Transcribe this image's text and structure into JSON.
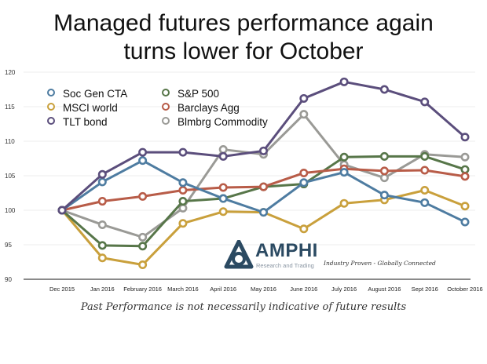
{
  "title_line1": "Managed futures performance again",
  "title_line2": "turns lower for October",
  "footer_note": "Past Performance is not necessarily indicative of future results",
  "logo": {
    "name": "AMPHI",
    "subtitle": "Research and Trading",
    "tagline": "Industry Proven - Globally Connected",
    "color": "#2b4a62"
  },
  "chart_data": {
    "type": "line",
    "title": "Managed futures performance again turns lower for October",
    "xlabel": "",
    "ylabel": "",
    "categories": [
      "Dec 2015",
      "Jan 2016",
      "February 2016",
      "March 2016",
      "April 2016",
      "May 2016",
      "June 2016",
      "July 2016",
      "August 2016",
      "Sept 2016",
      "October 2016"
    ],
    "ylim": [
      90,
      120
    ],
    "yticks": [
      90,
      95,
      100,
      105,
      110,
      115,
      120
    ],
    "grid": true,
    "legend_position": "top-left",
    "series": [
      {
        "name": "Soc Gen CTA",
        "color": "#4e7ca1",
        "values": [
          100,
          104.1,
          107.2,
          104.0,
          101.7,
          99.7,
          104.0,
          105.5,
          102.2,
          101.1,
          98.3
        ]
      },
      {
        "name": "MSCI world",
        "color": "#c9a03c",
        "values": [
          100,
          93.1,
          92.1,
          98.1,
          99.8,
          99.7,
          97.3,
          101.0,
          101.5,
          102.9,
          100.6
        ]
      },
      {
        "name": "TLT bond",
        "color": "#5b4e7c",
        "values": [
          100,
          105.2,
          108.4,
          108.4,
          107.8,
          108.6,
          116.2,
          118.6,
          117.5,
          115.7,
          110.6
        ]
      },
      {
        "name": "S&P 500",
        "color": "#577649",
        "values": [
          100,
          94.9,
          94.8,
          101.3,
          101.7,
          103.4,
          103.8,
          107.7,
          107.8,
          107.8,
          105.9
        ]
      },
      {
        "name": "Barclays Agg",
        "color": "#b85c48",
        "values": [
          100,
          101.3,
          102.0,
          102.9,
          103.3,
          103.4,
          105.4,
          106.0,
          105.7,
          105.8,
          104.9
        ]
      },
      {
        "name": "Blmbrg Commodity",
        "color": "#9a9a96",
        "values": [
          100,
          97.9,
          96.1,
          100.3,
          108.8,
          108.1,
          113.9,
          106.6,
          104.7,
          108.1,
          107.7
        ]
      }
    ]
  }
}
